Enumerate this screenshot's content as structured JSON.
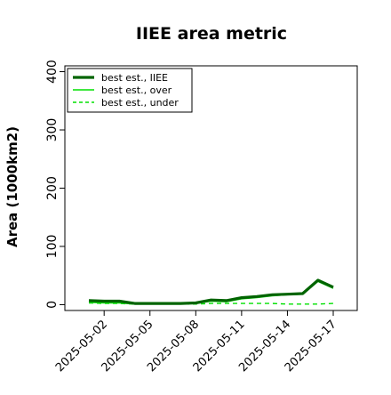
{
  "chart_data": {
    "type": "line",
    "title": "IIEE area metric",
    "xlabel": "",
    "ylabel": "Area (1000km2)",
    "ylim": [
      -10,
      410
    ],
    "y_ticks": [
      0,
      100,
      200,
      300,
      400
    ],
    "x_tick_labels": [
      "2025-05-02",
      "2025-05-05",
      "2025-05-08",
      "2025-05-11",
      "2025-05-14",
      "2025-05-17"
    ],
    "x_dates": [
      "2025-05-01",
      "2025-05-02",
      "2025-05-03",
      "2025-05-04",
      "2025-05-05",
      "2025-05-06",
      "2025-05-07",
      "2025-05-08",
      "2025-05-09",
      "2025-05-10",
      "2025-05-11",
      "2025-05-12",
      "2025-05-13",
      "2025-05-14",
      "2025-05-15",
      "2025-05-16",
      "2025-05-17"
    ],
    "grid": false,
    "legend_position": "top-left",
    "series": [
      {
        "name": "best est., IIEE",
        "color": "#006400",
        "style": "solid-thick",
        "values": [
          7,
          6,
          6,
          2,
          2,
          2,
          2,
          3,
          8,
          7,
          12,
          14,
          17,
          18,
          19,
          42,
          30
        ]
      },
      {
        "name": "best est., over",
        "color": "#00e000",
        "style": "solid",
        "values": [
          4,
          3,
          3,
          1,
          1,
          1,
          1,
          2,
          6,
          5,
          10,
          12,
          15,
          17,
          18,
          40,
          28
        ]
      },
      {
        "name": "best est., under",
        "color": "#00e000",
        "style": "dashed",
        "values": [
          3,
          2,
          2,
          1,
          1,
          1,
          1,
          1,
          2,
          2,
          2,
          2,
          2,
          1,
          1,
          1,
          2
        ]
      }
    ]
  }
}
